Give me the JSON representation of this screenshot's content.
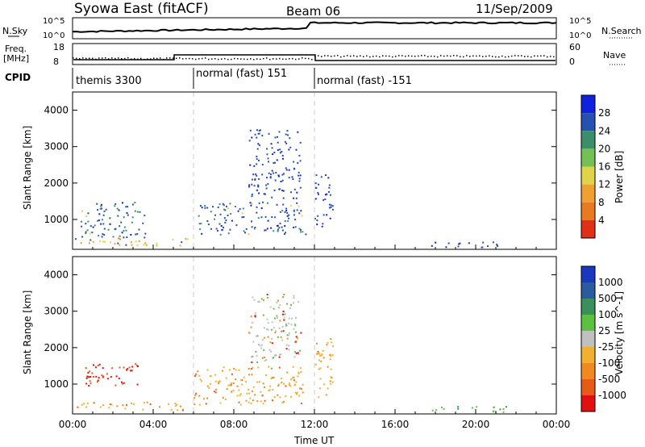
{
  "header": {
    "title": "Syowa East (fitACF)",
    "beam": "Beam 06",
    "date": "11/Sep/2009"
  },
  "top_panels": {
    "nsky_label": "N.Sky",
    "nsky_ticks": [
      "10^5",
      "10^0"
    ],
    "nsearch_label": "N.Search",
    "nsearch_ticks": [
      "10^5",
      "10^0"
    ],
    "freq_label": "Freq.",
    "freq_unit": "[MHz]",
    "freq_ticks": [
      "18",
      "8"
    ],
    "nave_label": "Nave",
    "nave_ticks": [
      "60",
      "0"
    ],
    "cpid_label": "CPID",
    "cpid_segments": [
      {
        "label": "themis 3300",
        "start_hr": 0,
        "end_hr": 6
      },
      {
        "label": "normal (fast) 151",
        "start_hr": 6,
        "end_hr": 12
      },
      {
        "label": "normal (fast) -151",
        "start_hr": 12,
        "end_hr": 24
      }
    ]
  },
  "chart_data": [
    {
      "type": "heatmap",
      "title": "",
      "xlabel": "Time UT",
      "ylabel": "Slant Range [km]",
      "x_ticks": [
        "00:00",
        "04:00",
        "08:00",
        "12:00",
        "16:00",
        "20:00",
        "00:00"
      ],
      "y_ticks": [
        1000,
        2000,
        3000,
        4000
      ],
      "xlim_hr": [
        0,
        24
      ],
      "ylim": [
        180,
        4500
      ],
      "colorbar": {
        "label": "Power [dB]",
        "ticks": [
          "4",
          "8",
          "12",
          "16",
          "20",
          "24",
          "28"
        ],
        "colors": [
          "#1020e0",
          "#2850b0",
          "#3a8f6a",
          "#74c057",
          "#dfd34a",
          "#f0a030",
          "#e87a20",
          "#e03018"
        ]
      },
      "regions": [
        {
          "t": [
            0.1,
            5.8
          ],
          "r": [
            300,
            520
          ],
          "level": "orange-yellow"
        },
        {
          "t": [
            0.4,
            3.6
          ],
          "r": [
            520,
            1500
          ],
          "level": "blue-green"
        },
        {
          "t": [
            6.2,
            11.6
          ],
          "r": [
            600,
            1500
          ],
          "level": "blue-green"
        },
        {
          "t": [
            8.7,
            11.3
          ],
          "r": [
            1600,
            3500
          ],
          "level": "blue"
        },
        {
          "t": [
            12.0,
            12.9
          ],
          "r": [
            800,
            2300
          ],
          "level": "blue"
        },
        {
          "t": [
            17.6,
            22.0
          ],
          "r": [
            250,
            400
          ],
          "level": "blue"
        }
      ]
    },
    {
      "type": "heatmap",
      "title": "",
      "xlabel": "Time UT",
      "ylabel": "Slant Range [km]",
      "x_ticks": [
        "00:00",
        "04:00",
        "08:00",
        "12:00",
        "16:00",
        "20:00",
        "00:00"
      ],
      "y_ticks": [
        1000,
        2000,
        3000,
        4000
      ],
      "xlim_hr": [
        0,
        24
      ],
      "ylim": [
        180,
        4500
      ],
      "colorbar": {
        "label": "Velocity [m s^-1]",
        "ticks": [
          "1000",
          "500",
          "100",
          "25",
          "-25",
          "-100",
          "-500",
          "-1000"
        ],
        "colors": [
          "#1838c0",
          "#2a5aa0",
          "#3a8f5a",
          "#5cc040",
          "#c0c0c0",
          "#f0b030",
          "#f08a20",
          "#e85a18",
          "#e01010"
        ]
      },
      "regions": [
        {
          "t": [
            0.1,
            5.8
          ],
          "r": [
            300,
            520
          ],
          "level": "orange"
        },
        {
          "t": [
            0.6,
            3.3
          ],
          "r": [
            900,
            1600
          ],
          "level": "red"
        },
        {
          "t": [
            6.0,
            11.4
          ],
          "r": [
            450,
            1500
          ],
          "level": "orange"
        },
        {
          "t": [
            8.7,
            11.3
          ],
          "r": [
            1600,
            3500
          ],
          "level": "gray-red"
        },
        {
          "t": [
            12.0,
            12.9
          ],
          "r": [
            600,
            2300
          ],
          "level": "orange"
        },
        {
          "t": [
            17.6,
            22.0
          ],
          "r": [
            250,
            400
          ],
          "level": "green"
        }
      ]
    }
  ]
}
